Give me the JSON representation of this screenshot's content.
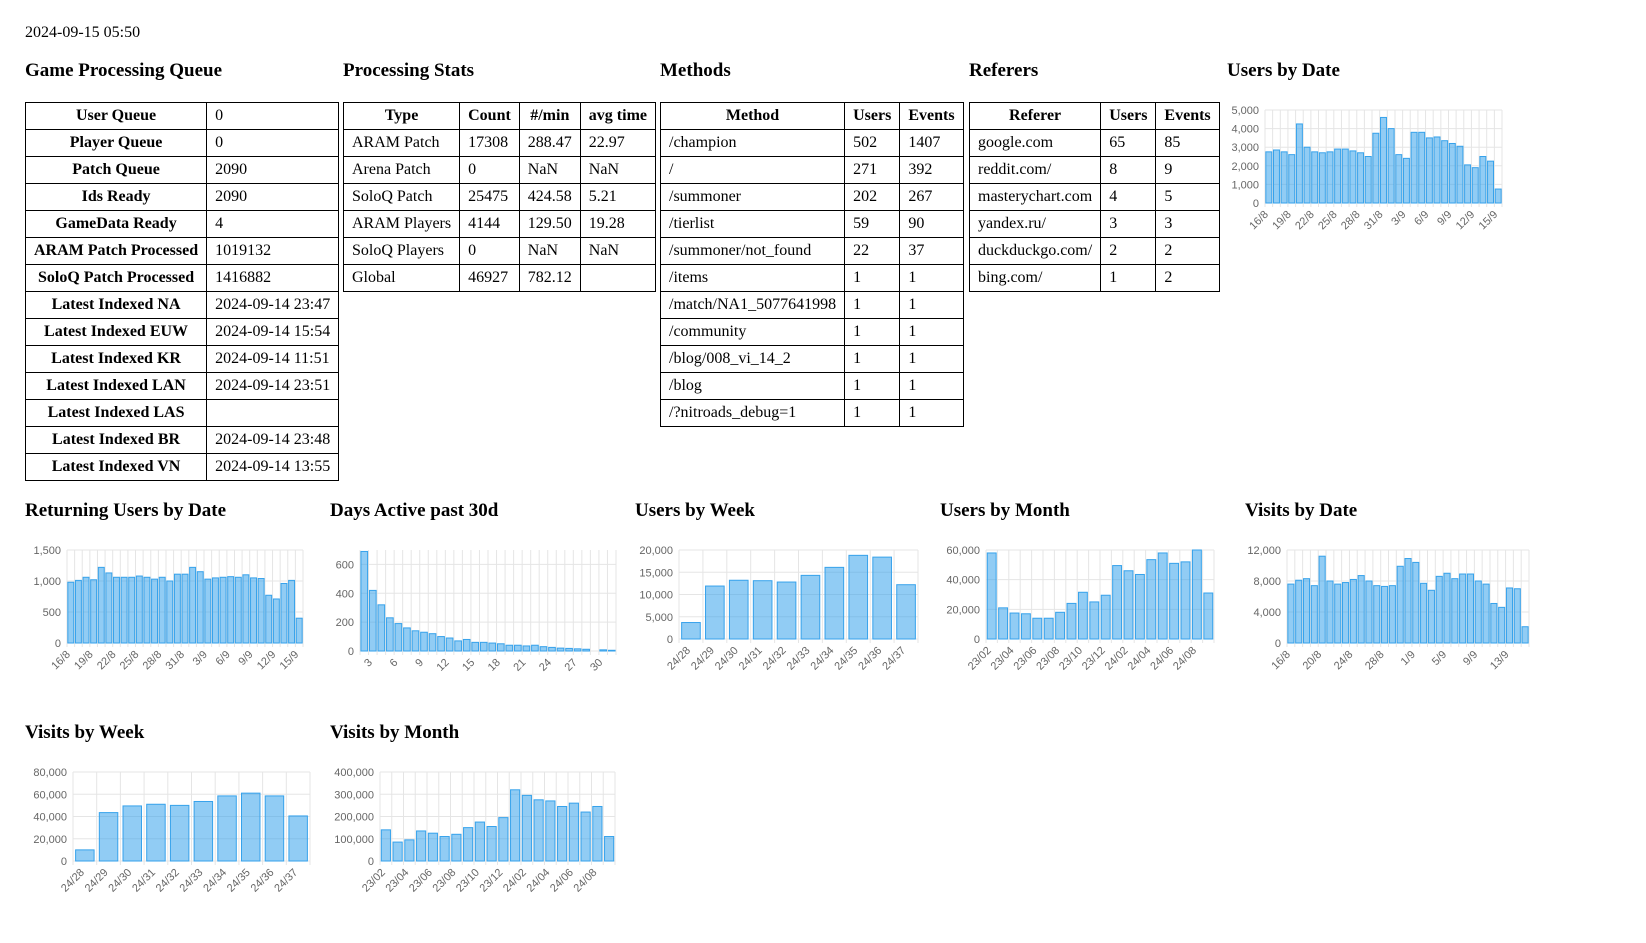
{
  "timestamp": "2024-09-15 05:50",
  "queue": {
    "title": "Game Processing Queue",
    "rows": [
      {
        "label": "User Queue",
        "value": "0"
      },
      {
        "label": "Player Queue",
        "value": "0"
      },
      {
        "label": "Patch Queue",
        "value": "2090"
      },
      {
        "label": "Ids Ready",
        "value": "2090"
      },
      {
        "label": "GameData Ready",
        "value": "4"
      },
      {
        "label": "ARAM Patch Processed",
        "value": "1019132"
      },
      {
        "label": "SoloQ Patch Processed",
        "value": "1416882"
      },
      {
        "label": "Latest Indexed NA",
        "value": "2024-09-14 23:47"
      },
      {
        "label": "Latest Indexed EUW",
        "value": "2024-09-14 15:54"
      },
      {
        "label": "Latest Indexed KR",
        "value": "2024-09-14 11:51"
      },
      {
        "label": "Latest Indexed LAN",
        "value": "2024-09-14 23:51"
      },
      {
        "label": "Latest Indexed LAS",
        "value": ""
      },
      {
        "label": "Latest Indexed BR",
        "value": "2024-09-14 23:48"
      },
      {
        "label": "Latest Indexed VN",
        "value": "2024-09-14 13:55"
      }
    ]
  },
  "stats": {
    "title": "Processing Stats",
    "headers": [
      "Type",
      "Count",
      "#/min",
      "avg time"
    ],
    "rows": [
      [
        "ARAM Patch",
        "17308",
        "288.47",
        "22.97"
      ],
      [
        "Arena Patch",
        "0",
        "NaN",
        "NaN"
      ],
      [
        "SoloQ Patch",
        "25475",
        "424.58",
        "5.21"
      ],
      [
        "ARAM Players",
        "4144",
        "129.50",
        "19.28"
      ],
      [
        "SoloQ Players",
        "0",
        "NaN",
        "NaN"
      ],
      [
        "Global",
        "46927",
        "782.12",
        ""
      ]
    ]
  },
  "methods": {
    "title": "Methods",
    "headers": [
      "Method",
      "Users",
      "Events"
    ],
    "rows": [
      [
        "/champion",
        "502",
        "1407"
      ],
      [
        "/",
        "271",
        "392"
      ],
      [
        "/summoner",
        "202",
        "267"
      ],
      [
        "/tierlist",
        "59",
        "90"
      ],
      [
        "/summoner/not_found",
        "22",
        "37"
      ],
      [
        "/items",
        "1",
        "1"
      ],
      [
        "/match/NA1_5077641998",
        "1",
        "1"
      ],
      [
        "/community",
        "1",
        "1"
      ],
      [
        "/blog/008_vi_14_2",
        "1",
        "1"
      ],
      [
        "/blog",
        "1",
        "1"
      ],
      [
        "/?nitroads_debug=1",
        "1",
        "1"
      ]
    ]
  },
  "referers": {
    "title": "Referers",
    "headers": [
      "Referer",
      "Users",
      "Events"
    ],
    "rows": [
      [
        "google.com",
        "65",
        "85"
      ],
      [
        "reddit.com/",
        "8",
        "9"
      ],
      [
        "masterychart.com",
        "4",
        "5"
      ],
      [
        "yandex.ru/",
        "3",
        "3"
      ],
      [
        "duckduckgo.com/",
        "2",
        "2"
      ],
      [
        "bing.com/",
        "1",
        "2"
      ]
    ]
  },
  "colors": {
    "bar_fill": "rgba(54,162,235,0.55)",
    "bar_stroke": "#36a2eb",
    "grid": "#e5e5e5"
  },
  "chart_data": [
    {
      "title": "Users by Date",
      "type": "bar",
      "ylim": [
        0,
        5000
      ],
      "yticks": [
        0,
        1000,
        2000,
        3000,
        4000,
        5000
      ],
      "yticklabels": [
        "0",
        "1,000",
        "2,000",
        "3,000",
        "4,000",
        "5,000"
      ],
      "categories": [
        "16/8",
        "17/8",
        "18/8",
        "19/8",
        "20/8",
        "21/8",
        "22/8",
        "23/8",
        "24/8",
        "25/8",
        "26/8",
        "27/8",
        "28/8",
        "29/8",
        "30/8",
        "31/8",
        "1/9",
        "2/9",
        "3/9",
        "4/9",
        "5/9",
        "6/9",
        "7/9",
        "8/9",
        "9/9",
        "10/9",
        "11/9",
        "12/9",
        "13/9",
        "14/9",
        "15/9"
      ],
      "xticklabels": [
        "16/8",
        "19/8",
        "22/8",
        "25/8",
        "28/8",
        "31/8",
        "3/9",
        "6/9",
        "9/9",
        "12/9",
        "15/9"
      ],
      "values": [
        2750,
        2850,
        2750,
        2600,
        4250,
        3000,
        2750,
        2700,
        2750,
        2900,
        2900,
        2800,
        2700,
        2500,
        3750,
        4600,
        4000,
        2600,
        2400,
        3800,
        3800,
        3500,
        3550,
        3350,
        3200,
        3050,
        2050,
        1900,
        2500,
        2250,
        750
      ]
    },
    {
      "title": "Returning Users by Date",
      "type": "bar",
      "ylim": [
        0,
        1500
      ],
      "yticks": [
        0,
        500,
        1000,
        1500
      ],
      "yticklabels": [
        "0",
        "500",
        "1,000",
        "1,500"
      ],
      "categories": [
        "16/8",
        "17/8",
        "18/8",
        "19/8",
        "20/8",
        "21/8",
        "22/8",
        "23/8",
        "24/8",
        "25/8",
        "26/8",
        "27/8",
        "28/8",
        "29/8",
        "30/8",
        "31/8",
        "1/9",
        "2/9",
        "3/9",
        "4/9",
        "5/9",
        "6/9",
        "7/9",
        "8/9",
        "9/9",
        "10/9",
        "11/9",
        "12/9",
        "13/9",
        "14/9",
        "15/9"
      ],
      "xticklabels": [
        "16/8",
        "19/8",
        "22/8",
        "25/8",
        "28/8",
        "31/8",
        "3/9",
        "6/9",
        "9/9",
        "12/9",
        "15/9"
      ],
      "values": [
        980,
        1010,
        1060,
        1020,
        1220,
        1130,
        1060,
        1060,
        1060,
        1080,
        1060,
        1030,
        1060,
        1000,
        1110,
        1110,
        1220,
        1150,
        1030,
        1050,
        1060,
        1070,
        1060,
        1100,
        1050,
        1040,
        770,
        710,
        960,
        1010,
        400
      ]
    },
    {
      "title": "Days Active past 30d",
      "type": "bar",
      "ylim": [
        0,
        700
      ],
      "yticks": [
        0,
        200,
        400,
        600
      ],
      "yticklabels": [
        "0",
        "200",
        "400",
        "600"
      ],
      "categories": [
        "2",
        "3",
        "4",
        "5",
        "6",
        "7",
        "8",
        "9",
        "10",
        "11",
        "12",
        "13",
        "14",
        "15",
        "16",
        "17",
        "18",
        "19",
        "20",
        "21",
        "22",
        "23",
        "24",
        "25",
        "26",
        "27",
        "28",
        "29",
        "30",
        "31"
      ],
      "xticklabels": [
        "3",
        "6",
        "9",
        "12",
        "15",
        "18",
        "21",
        "24",
        "27",
        "30"
      ],
      "values": [
        690,
        420,
        320,
        230,
        190,
        160,
        140,
        130,
        120,
        100,
        90,
        70,
        80,
        60,
        60,
        55,
        50,
        40,
        40,
        35,
        40,
        30,
        25,
        20,
        18,
        15,
        12,
        0,
        8,
        5
      ]
    },
    {
      "title": "Users by Week",
      "type": "bar",
      "ylim": [
        0,
        20000
      ],
      "yticks": [
        0,
        5000,
        10000,
        15000,
        20000
      ],
      "yticklabels": [
        "0",
        "5,000",
        "10,000",
        "15,000",
        "20,000"
      ],
      "categories": [
        "24/28",
        "24/29",
        "24/30",
        "24/31",
        "24/32",
        "24/33",
        "24/34",
        "24/35",
        "24/36",
        "24/37"
      ],
      "xticklabels": [
        "24/28",
        "24/29",
        "24/30",
        "24/31",
        "24/32",
        "24/33",
        "24/34",
        "24/35",
        "24/36",
        "24/37"
      ],
      "values": [
        3700,
        11900,
        13200,
        13100,
        12800,
        14300,
        16100,
        18800,
        18400,
        12200
      ]
    },
    {
      "title": "Users by Month",
      "type": "bar",
      "ylim": [
        0,
        60000
      ],
      "yticks": [
        0,
        20000,
        40000,
        60000
      ],
      "yticklabels": [
        "0",
        "20,000",
        "40,000",
        "60,000"
      ],
      "categories": [
        "23/02",
        "23/03",
        "23/04",
        "23/05",
        "23/06",
        "23/07",
        "23/08",
        "23/09",
        "23/10",
        "23/11",
        "23/12",
        "24/01",
        "24/02",
        "24/03",
        "24/04",
        "24/05",
        "24/06",
        "24/07",
        "24/08",
        "24/09"
      ],
      "xticklabels": [
        "23/02",
        "23/04",
        "23/06",
        "23/08",
        "23/10",
        "23/12",
        "24/02",
        "24/04",
        "24/06",
        "24/08"
      ],
      "values": [
        58000,
        21000,
        17500,
        17000,
        14000,
        14000,
        18000,
        24000,
        31500,
        25000,
        29500,
        49500,
        46000,
        43500,
        53500,
        58000,
        51000,
        52000,
        60000,
        31000
      ]
    },
    {
      "title": "Visits by Date",
      "type": "bar",
      "ylim": [
        0,
        12000
      ],
      "yticks": [
        0,
        4000,
        8000,
        12000
      ],
      "yticklabels": [
        "0",
        "4,000",
        "8,000",
        "12,000"
      ],
      "categories": [
        "16/8",
        "17/8",
        "18/8",
        "19/8",
        "20/8",
        "21/8",
        "22/8",
        "23/8",
        "24/8",
        "25/8",
        "26/8",
        "27/8",
        "28/8",
        "29/8",
        "30/8",
        "31/8",
        "1/9",
        "2/9",
        "3/9",
        "4/9",
        "5/9",
        "6/9",
        "7/9",
        "8/9",
        "9/9",
        "10/9",
        "11/9",
        "12/9",
        "13/9",
        "14/9",
        "15/9"
      ],
      "xticklabels": [
        "16/8",
        "20/8",
        "24/8",
        "28/8",
        "1/9",
        "5/9",
        "9/9",
        "13/9"
      ],
      "values": [
        7600,
        8100,
        8300,
        7400,
        11200,
        8000,
        7600,
        7800,
        8200,
        8700,
        8000,
        7400,
        7300,
        7400,
        9900,
        10900,
        10400,
        7700,
        6800,
        8600,
        9000,
        8300,
        8900,
        8900,
        8000,
        7600,
        5100,
        4600,
        7100,
        7000,
        2100
      ]
    },
    {
      "title": "Visits by Week",
      "type": "bar",
      "ylim": [
        0,
        80000
      ],
      "yticks": [
        0,
        20000,
        40000,
        60000,
        80000
      ],
      "yticklabels": [
        "0",
        "20,000",
        "40,000",
        "60,000",
        "80,000"
      ],
      "categories": [
        "24/28",
        "24/29",
        "24/30",
        "24/31",
        "24/32",
        "24/33",
        "24/34",
        "24/35",
        "24/36",
        "24/37"
      ],
      "xticklabels": [
        "24/28",
        "24/29",
        "24/30",
        "24/31",
        "24/32",
        "24/33",
        "24/34",
        "24/35",
        "24/36",
        "24/37"
      ],
      "values": [
        10000,
        43500,
        49500,
        51000,
        50000,
        53500,
        58500,
        61000,
        58500,
        40500
      ]
    },
    {
      "title": "Visits by Month",
      "type": "bar",
      "ylim": [
        0,
        400000
      ],
      "yticks": [
        0,
        100000,
        200000,
        300000,
        400000
      ],
      "yticklabels": [
        "0",
        "100,000",
        "200,000",
        "300,000",
        "400,000"
      ],
      "categories": [
        "23/02",
        "23/03",
        "23/04",
        "23/05",
        "23/06",
        "23/07",
        "23/08",
        "23/09",
        "23/10",
        "23/11",
        "23/12",
        "24/01",
        "24/02",
        "24/03",
        "24/04",
        "24/05",
        "24/06",
        "24/07",
        "24/08",
        "24/09"
      ],
      "xticklabels": [
        "23/02",
        "23/04",
        "23/06",
        "23/08",
        "23/10",
        "23/12",
        "24/02",
        "24/04",
        "24/06",
        "24/08"
      ],
      "values": [
        140000,
        85000,
        95000,
        135000,
        125000,
        110000,
        120000,
        150000,
        175000,
        155000,
        195000,
        320000,
        295000,
        275000,
        270000,
        245000,
        260000,
        220000,
        245000,
        110000
      ]
    }
  ]
}
